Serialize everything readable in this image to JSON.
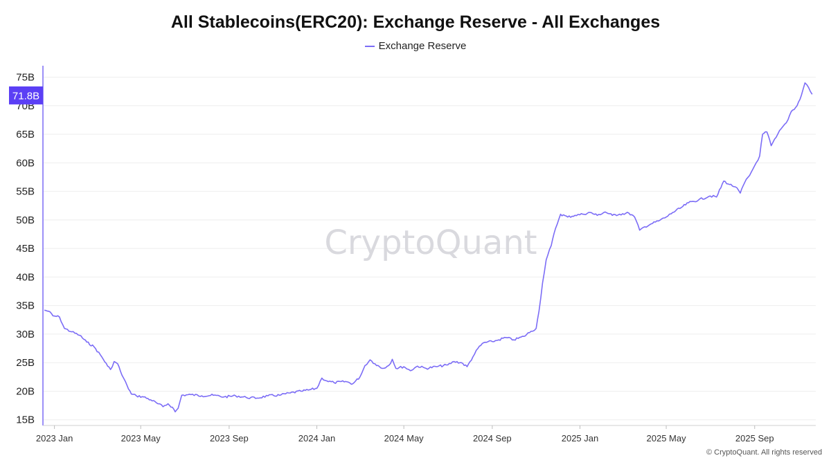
{
  "chart_data": {
    "type": "line",
    "title": "All Stablecoins(ERC20): Exchange Reserve - All Exchanges",
    "legend": {
      "position": "top-center",
      "entries": [
        "Exchange Reserve"
      ]
    },
    "xlabel": "",
    "ylabel": "",
    "ylim": [
      14,
      77
    ],
    "y_ticks": [
      "15B",
      "20B",
      "25B",
      "30B",
      "35B",
      "40B",
      "45B",
      "50B",
      "55B",
      "60B",
      "65B",
      "70B",
      "75B"
    ],
    "y_tick_values": [
      15,
      20,
      25,
      30,
      35,
      40,
      45,
      50,
      55,
      60,
      65,
      70,
      75
    ],
    "x_ticks": [
      "2023 Jan",
      "2023 May",
      "2023 Sep",
      "2024 Jan",
      "2024 May",
      "2024 Sep",
      "2025 Jan",
      "2025 May",
      "2025 Sep"
    ],
    "x_tick_dates": [
      "2023-01-01",
      "2023-05-01",
      "2023-09-01",
      "2024-01-01",
      "2024-05-01",
      "2024-09-01",
      "2025-01-01",
      "2025-05-01",
      "2025-09-01"
    ],
    "xlim": [
      "2022-12-16",
      "2025-11-25"
    ],
    "current_value_label": "71.8B",
    "grid": true,
    "color": "#7b6cf6",
    "series": [
      {
        "name": "Exchange Reserve",
        "unit": "B",
        "points": [
          [
            "2022-12-18",
            34.2
          ],
          [
            "2022-12-24",
            34.0
          ],
          [
            "2022-12-30",
            33.2
          ],
          [
            "2023-01-08",
            33.0
          ],
          [
            "2023-01-15",
            31.0
          ],
          [
            "2023-01-25",
            30.4
          ],
          [
            "2023-02-05",
            29.8
          ],
          [
            "2023-02-15",
            28.6
          ],
          [
            "2023-02-25",
            27.8
          ],
          [
            "2023-03-08",
            26.0
          ],
          [
            "2023-03-16",
            24.4
          ],
          [
            "2023-03-20",
            23.8
          ],
          [
            "2023-03-25",
            25.2
          ],
          [
            "2023-03-30",
            24.8
          ],
          [
            "2023-04-05",
            22.8
          ],
          [
            "2023-04-12",
            21.0
          ],
          [
            "2023-04-18",
            19.5
          ],
          [
            "2023-04-25",
            19.2
          ],
          [
            "2023-05-05",
            19.0
          ],
          [
            "2023-05-15",
            18.5
          ],
          [
            "2023-05-25",
            17.8
          ],
          [
            "2023-06-01",
            17.3
          ],
          [
            "2023-06-08",
            17.8
          ],
          [
            "2023-06-14",
            17.2
          ],
          [
            "2023-06-18",
            16.4
          ],
          [
            "2023-06-22",
            17.0
          ],
          [
            "2023-06-27",
            19.3
          ],
          [
            "2023-07-10",
            19.4
          ],
          [
            "2023-07-25",
            19.2
          ],
          [
            "2023-08-10",
            19.3
          ],
          [
            "2023-08-25",
            19.0
          ],
          [
            "2023-09-10",
            19.2
          ],
          [
            "2023-09-25",
            18.9
          ],
          [
            "2023-10-10",
            18.8
          ],
          [
            "2023-10-25",
            19.2
          ],
          [
            "2023-11-10",
            19.3
          ],
          [
            "2023-11-25",
            19.7
          ],
          [
            "2023-12-10",
            20.0
          ],
          [
            "2023-12-20",
            20.2
          ],
          [
            "2024-01-01",
            20.5
          ],
          [
            "2024-01-08",
            22.3
          ],
          [
            "2024-01-15",
            21.8
          ],
          [
            "2024-01-25",
            21.5
          ],
          [
            "2024-02-10",
            21.7
          ],
          [
            "2024-02-20",
            21.3
          ],
          [
            "2024-03-01",
            22.5
          ],
          [
            "2024-03-08",
            24.5
          ],
          [
            "2024-03-15",
            25.5
          ],
          [
            "2024-03-22",
            24.8
          ],
          [
            "2024-04-01",
            24.0
          ],
          [
            "2024-04-10",
            24.5
          ],
          [
            "2024-04-15",
            25.6
          ],
          [
            "2024-04-20",
            24.0
          ],
          [
            "2024-05-01",
            24.3
          ],
          [
            "2024-05-10",
            23.6
          ],
          [
            "2024-05-20",
            24.4
          ],
          [
            "2024-06-01",
            24.0
          ],
          [
            "2024-06-15",
            24.3
          ],
          [
            "2024-07-01",
            24.6
          ],
          [
            "2024-07-10",
            25.2
          ],
          [
            "2024-07-20",
            25.0
          ],
          [
            "2024-07-28",
            24.3
          ],
          [
            "2024-08-05",
            26.0
          ],
          [
            "2024-08-12",
            27.5
          ],
          [
            "2024-08-20",
            28.5
          ],
          [
            "2024-09-01",
            28.7
          ],
          [
            "2024-09-10",
            29.0
          ],
          [
            "2024-09-20",
            29.4
          ],
          [
            "2024-10-01",
            29.0
          ],
          [
            "2024-10-15",
            29.6
          ],
          [
            "2024-10-25",
            30.5
          ],
          [
            "2024-11-01",
            31.0
          ],
          [
            "2024-11-05",
            34.0
          ],
          [
            "2024-11-10",
            39.0
          ],
          [
            "2024-11-15",
            43.0
          ],
          [
            "2024-11-22",
            45.5
          ],
          [
            "2024-11-28",
            48.5
          ],
          [
            "2024-12-05",
            51.0
          ],
          [
            "2024-12-15",
            50.5
          ],
          [
            "2024-12-25",
            50.8
          ],
          [
            "2025-01-05",
            51.0
          ],
          [
            "2025-01-15",
            51.3
          ],
          [
            "2025-01-25",
            50.8
          ],
          [
            "2025-02-05",
            51.4
          ],
          [
            "2025-02-15",
            50.8
          ],
          [
            "2025-02-25",
            51.0
          ],
          [
            "2025-03-10",
            51.2
          ],
          [
            "2025-03-18",
            50.5
          ],
          [
            "2025-03-25",
            48.2
          ],
          [
            "2025-04-01",
            48.8
          ],
          [
            "2025-04-10",
            49.3
          ],
          [
            "2025-04-20",
            49.8
          ],
          [
            "2025-05-01",
            50.5
          ],
          [
            "2025-05-10",
            51.3
          ],
          [
            "2025-05-20",
            52.0
          ],
          [
            "2025-06-01",
            53.0
          ],
          [
            "2025-06-15",
            53.5
          ],
          [
            "2025-07-01",
            54.2
          ],
          [
            "2025-07-10",
            54.0
          ],
          [
            "2025-07-20",
            56.8
          ],
          [
            "2025-07-28",
            56.2
          ],
          [
            "2025-08-05",
            55.8
          ],
          [
            "2025-08-12",
            54.7
          ],
          [
            "2025-08-18",
            56.5
          ],
          [
            "2025-08-25",
            57.8
          ],
          [
            "2025-09-01",
            59.5
          ],
          [
            "2025-09-08",
            61.2
          ],
          [
            "2025-09-12",
            65.0
          ],
          [
            "2025-09-18",
            65.4
          ],
          [
            "2025-09-24",
            63.0
          ],
          [
            "2025-10-01",
            64.5
          ],
          [
            "2025-10-08",
            66.0
          ],
          [
            "2025-10-15",
            67.0
          ],
          [
            "2025-10-22",
            69.0
          ],
          [
            "2025-10-30",
            70.0
          ],
          [
            "2025-11-05",
            71.8
          ],
          [
            "2025-11-10",
            74.0
          ],
          [
            "2025-11-15",
            73.2
          ],
          [
            "2025-11-20",
            72.0
          ]
        ]
      }
    ]
  },
  "watermark": "CryptoQuant",
  "copyright": "© CryptoQuant. All rights reserved"
}
